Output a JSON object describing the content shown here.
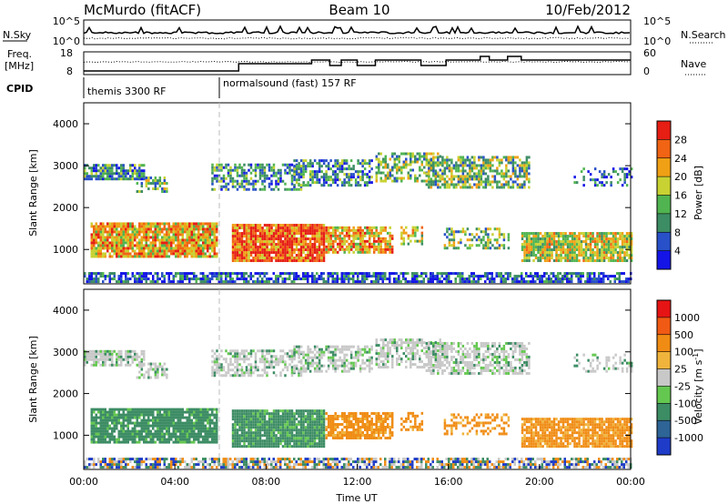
{
  "header": {
    "station": "McMurdo (fitACF)",
    "beam": "Beam 10",
    "date": "10/Feb/2012"
  },
  "noise_panel": {
    "left_label": "N.Sky",
    "left_ticks": [
      "10^5",
      "10^0"
    ],
    "right_ticks": [
      "10^5",
      "10^0"
    ],
    "right_label": "N.Search"
  },
  "freq_panel": {
    "left_label_line1": "Freq.",
    "left_label_line2": "[MHz]",
    "left_ticks": [
      "18",
      "8"
    ],
    "right_ticks": [
      "60",
      "0"
    ],
    "right_label": "Nave"
  },
  "cpid_panel": {
    "label": "CPID",
    "modes": [
      "themis 3300 RF",
      "normalsound (fast) 157 RF"
    ]
  },
  "chart_data": [
    {
      "type": "heatmap",
      "title": "",
      "ylabel": "Slant Range [km]",
      "xlabel": "",
      "ylim": [
        180,
        4500
      ],
      "xlim": [
        0,
        24
      ],
      "yticks": [
        "1000",
        "2000",
        "3000",
        "4000"
      ],
      "xticks": [],
      "colorbar": {
        "label": "Power [dB]",
        "ticks": [
          "28",
          "24",
          "20",
          "16",
          "12",
          "8",
          "4"
        ],
        "colors": [
          "#1414e6",
          "#2850c8",
          "#3c8c64",
          "#50b450",
          "#c8d232",
          "#f0a014",
          "#f06414",
          "#e61e14"
        ]
      }
    },
    {
      "type": "heatmap",
      "title": "",
      "ylabel": "Slant Range [km]",
      "xlabel": "Time UT",
      "ylim": [
        180,
        4500
      ],
      "xlim": [
        0,
        24
      ],
      "yticks": [
        "1000",
        "2000",
        "3000",
        "4000"
      ],
      "xticks": [
        "00:00",
        "04:00",
        "08:00",
        "12:00",
        "16:00",
        "20:00",
        "00:00"
      ],
      "colorbar": {
        "label": "Velocity [m s^-1]",
        "ticks": [
          "1000",
          "500",
          "100",
          "25",
          "-25",
          "-100",
          "-500",
          "-1000"
        ],
        "colors": [
          "#1e3cc8",
          "#2e6496",
          "#3c8c64",
          "#64c850",
          "#c8c8c8",
          "#f0b43c",
          "#f08c14",
          "#f05a14",
          "#e61414"
        ]
      }
    }
  ]
}
